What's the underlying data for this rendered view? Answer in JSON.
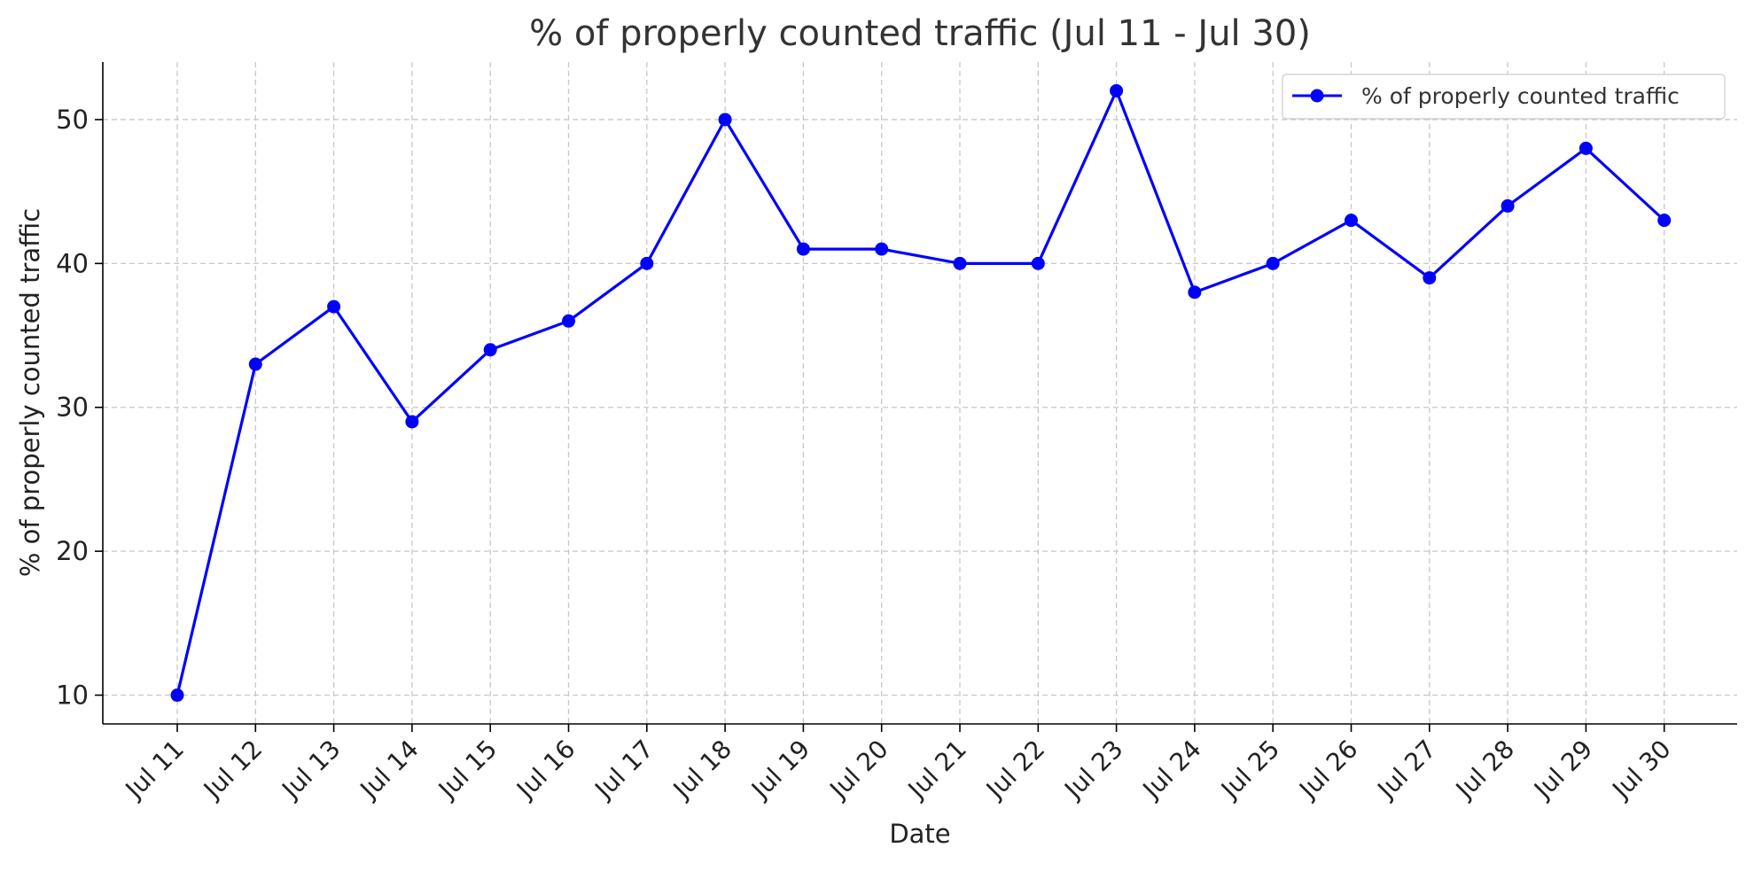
{
  "chart_data": {
    "type": "line",
    "title": "% of properly counted traffic (Jul 11 - Jul 30)",
    "xlabel": "Date",
    "ylabel": "% of properly counted traffic",
    "categories": [
      "Jul 11",
      "Jul 12",
      "Jul 13",
      "Jul 14",
      "Jul 15",
      "Jul 16",
      "Jul 17",
      "Jul 18",
      "Jul 19",
      "Jul 20",
      "Jul 21",
      "Jul 22",
      "Jul 23",
      "Jul 24",
      "Jul 25",
      "Jul 26",
      "Jul 27",
      "Jul 28",
      "Jul 29",
      "Jul 30"
    ],
    "series": [
      {
        "name": "% of properly counted traffic",
        "values": [
          10,
          33,
          37,
          29,
          34,
          36,
          40,
          50,
          41,
          41,
          40,
          40,
          52,
          38,
          40,
          43,
          39,
          44,
          48,
          43
        ],
        "color": "#0000ff"
      }
    ],
    "ylim": [
      8,
      54
    ],
    "yticks": [
      10,
      20,
      30,
      40,
      50
    ],
    "grid": true,
    "legend_position": "top-right"
  }
}
